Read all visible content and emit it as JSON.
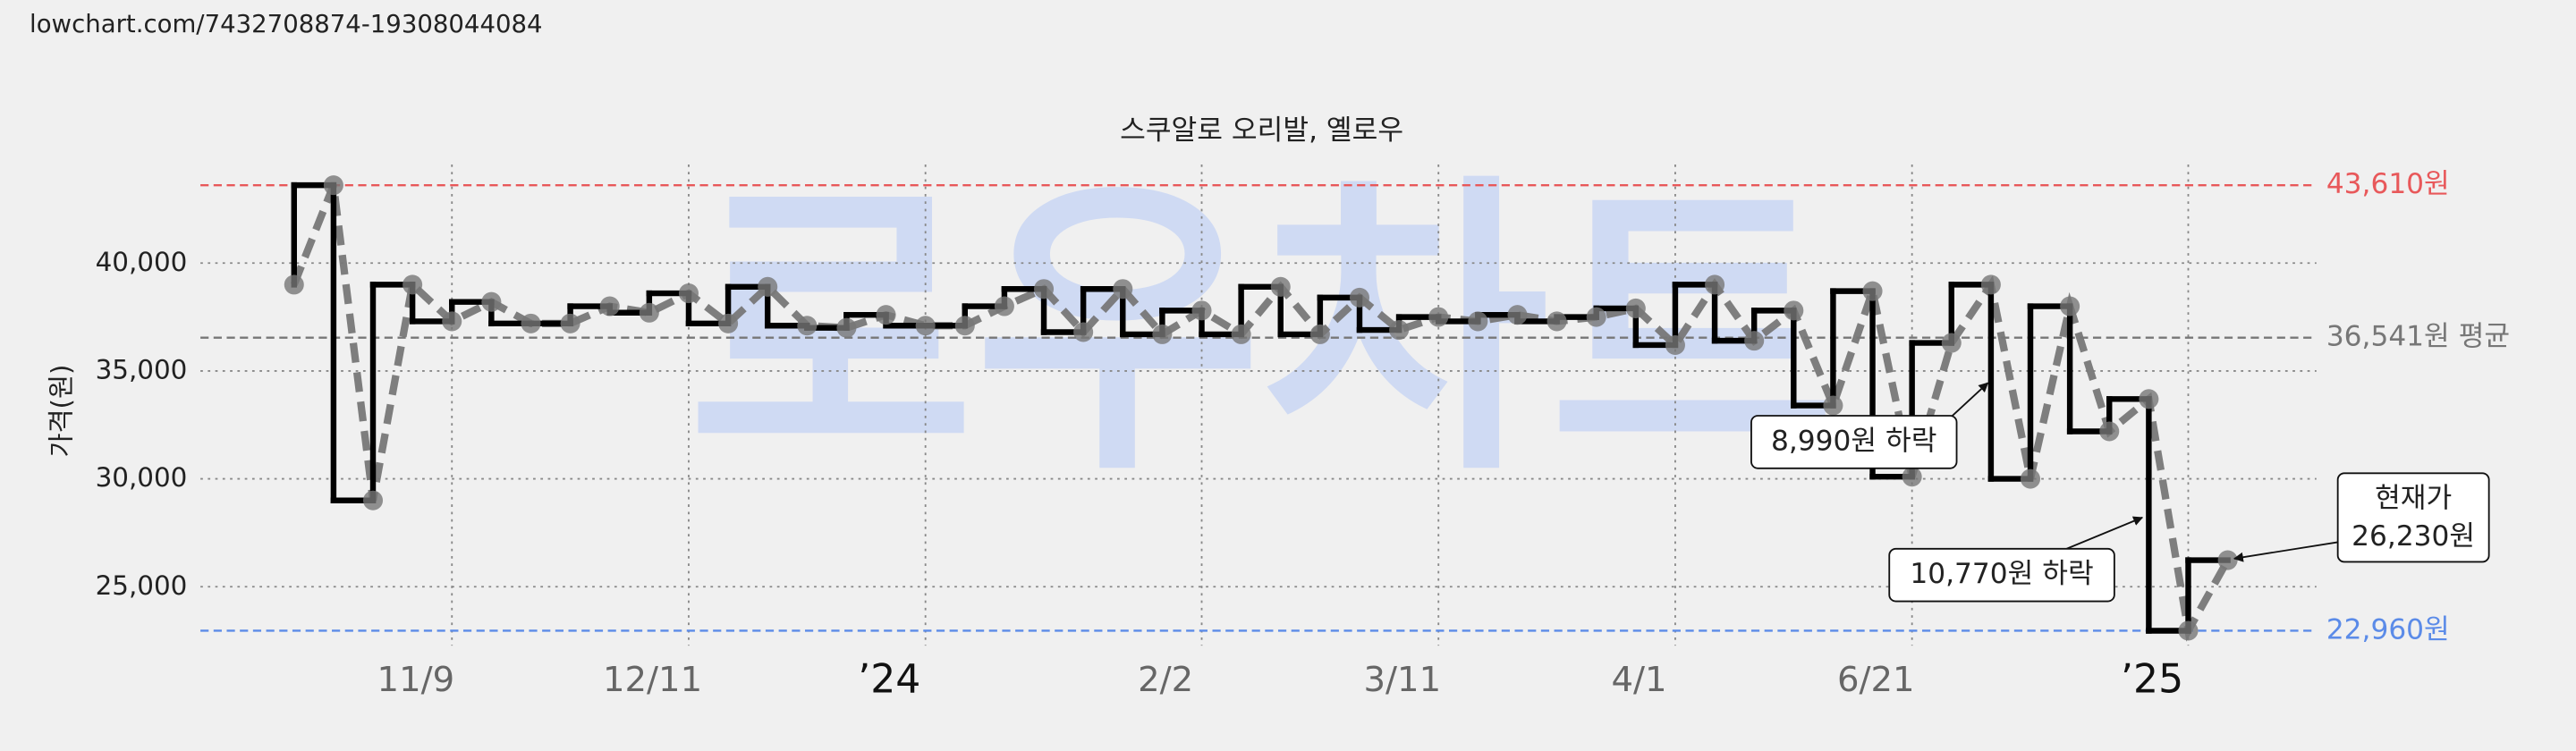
{
  "header": {
    "url": "lowchart.com/7432708874-19308044084"
  },
  "chart_data": {
    "type": "step",
    "title": "스쿠알로 오리발, 옐로우",
    "y_label": "가격(원)",
    "watermark": "로우차트",
    "categories": [
      null,
      null,
      null,
      null,
      "11/9",
      null,
      null,
      null,
      null,
      null,
      "12/11",
      null,
      null,
      null,
      null,
      null,
      "’24",
      null,
      null,
      null,
      null,
      null,
      null,
      "2/2",
      null,
      null,
      null,
      null,
      null,
      "3/11",
      null,
      null,
      null,
      null,
      null,
      "4/1",
      null,
      null,
      null,
      null,
      null,
      "6/21",
      null,
      null,
      null,
      null,
      null,
      null,
      "’25",
      null
    ],
    "values": [
      39000,
      43610,
      29000,
      39000,
      37300,
      38200,
      37200,
      37200,
      38000,
      37700,
      38600,
      37200,
      38900,
      37100,
      37000,
      37600,
      37100,
      37100,
      38000,
      38800,
      36800,
      38800,
      36700,
      37800,
      36700,
      38900,
      36700,
      38400,
      36900,
      37500,
      37300,
      37600,
      37300,
      37500,
      37900,
      36200,
      39000,
      36400,
      37800,
      33400,
      38700,
      30100,
      36300,
      39000,
      30000,
      38000,
      32200,
      33700,
      22960,
      26230
    ],
    "color": "#000000",
    "point_color": "#777777",
    "ylim": [
      22270,
      44570
    ],
    "yticks": [
      {
        "value": 25000,
        "label": "25,000"
      },
      {
        "value": 30000,
        "label": "30,000"
      },
      {
        "value": 35000,
        "label": "35,000"
      },
      {
        "value": 40000,
        "label": "40,000"
      }
    ],
    "grid": true,
    "reference_lines": [
      {
        "value": 43610,
        "label": "43,610원",
        "color": "#e8585a"
      },
      {
        "value": 36541,
        "label": "36,541원 평균",
        "color": "#777777"
      },
      {
        "value": 22960,
        "label": "22,960원",
        "color": "#5b8be8"
      }
    ],
    "annotations": [
      {
        "lines": [
          "8,990원 하락"
        ]
      },
      {
        "lines": [
          "10,770원 하락"
        ]
      },
      {
        "lines": [
          "현재가",
          "26,230원"
        ]
      }
    ]
  }
}
